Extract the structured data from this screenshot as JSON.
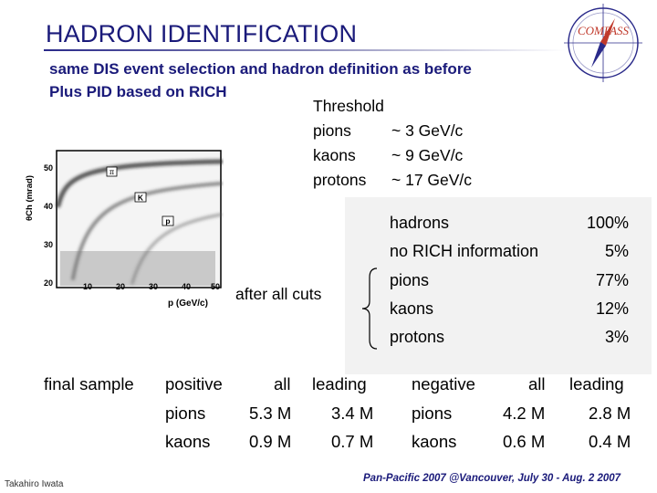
{
  "title": "HADRON IDENTIFICATION",
  "subtitle_lines": [
    "same DIS event selection and hadron definition as before",
    "Plus   PID based on RICH"
  ],
  "logo_text": "COMPASS",
  "threshold": {
    "title": "Threshold",
    "rows": [
      {
        "particle": "pions",
        "value": "~ 3 GeV/c"
      },
      {
        "particle": "kaons",
        "value": "~ 9 GeV/c"
      },
      {
        "particle": "protons",
        "value": "~ 17 GeV/c"
      }
    ]
  },
  "plot": {
    "y_axis_label": "θCh (mrad)",
    "x_axis_label": "p (GeV/c)",
    "y_ticks": [
      "20",
      "30",
      "40",
      "50"
    ],
    "x_ticks": [
      "10",
      "20",
      "30",
      "40",
      "50"
    ],
    "band_labels": [
      "π",
      "K",
      "p"
    ]
  },
  "after_cuts_label": "after all cuts",
  "composition": [
    {
      "name": "hadrons",
      "value": "100%"
    },
    {
      "name": "no RICH information",
      "value": "5%"
    },
    {
      "name": "pions",
      "value": "77%"
    },
    {
      "name": "kaons",
      "value": "12%"
    },
    {
      "name": "protons",
      "value": "3%"
    }
  ],
  "final_sample": {
    "label": "final sample",
    "positive": {
      "header": "positive",
      "all_header": "all",
      "leading_header": "leading",
      "rows": [
        {
          "particle": "pions",
          "all": "5.3 M",
          "leading": "3.4 M"
        },
        {
          "particle": "kaons",
          "all": "0.9 M",
          "leading": "0.7 M"
        }
      ]
    },
    "negative": {
      "header": "negative",
      "all_header": "all",
      "leading_header": "leading",
      "rows": [
        {
          "particle": "pions",
          "all": "4.2 M",
          "leading": "2.8 M"
        },
        {
          "particle": "kaons",
          "all": "0.6 M",
          "leading": "0.4 M"
        }
      ]
    }
  },
  "footer": {
    "author": "Takahiro Iwata",
    "conference": "Pan-Pacific  2007 @Vancouver,  July 30 - Aug. 2 2007"
  }
}
